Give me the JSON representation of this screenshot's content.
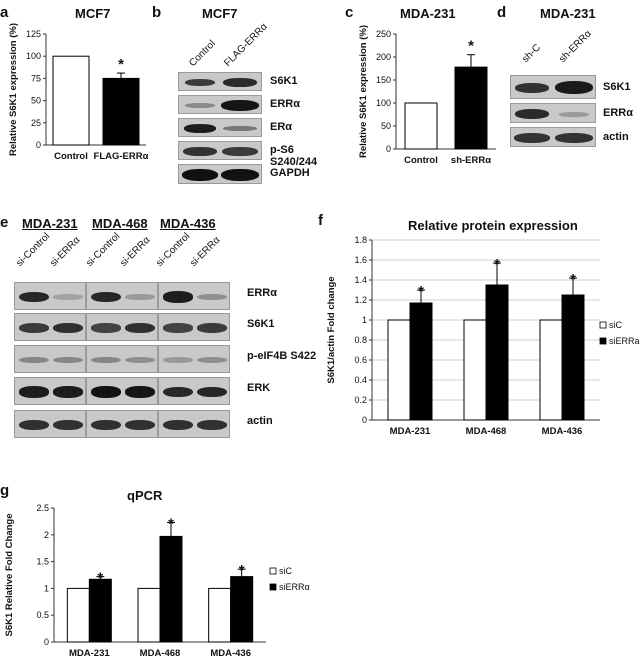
{
  "panels": {
    "a": {
      "letter": "a",
      "title": "MCF7",
      "ylabel": "Relative S6K1 expression (%)"
    },
    "b": {
      "letter": "b",
      "title": "MCF7",
      "lanes": [
        "Control",
        "FLAG-ERRα"
      ],
      "rows": [
        "S6K1",
        "ERRα",
        "ERα",
        "p-S6 S240/244",
        "GAPDH"
      ]
    },
    "c": {
      "letter": "c",
      "title": "MDA-231",
      "ylabel": "Relative S6K1 expression (%)"
    },
    "d": {
      "letter": "d",
      "title": "MDA-231",
      "lanes": [
        "sh-C",
        "sh-ERRα"
      ],
      "rows": [
        "S6K1",
        "ERRα",
        "actin"
      ]
    },
    "e": {
      "letter": "e",
      "cell_lines": [
        "MDA-231",
        "MDA-468",
        "MDA-436"
      ],
      "lanes": [
        "si-Control",
        "si-ERRα"
      ],
      "rows": [
        "ERRα",
        "S6K1",
        "p-eIF4B S422",
        "ERK",
        "actin"
      ]
    },
    "f": {
      "letter": "f",
      "title": "Relative protein expression",
      "ylabel": "S6K1/actin Fold change"
    },
    "g": {
      "letter": "g",
      "title": "qPCR",
      "ylabel": "S6K1 Relative Fold Change"
    }
  },
  "chart_data": [
    {
      "id": "a",
      "type": "bar",
      "categories": [
        "Control",
        "FLAG-ERRα"
      ],
      "values": [
        100,
        75
      ],
      "errors": [
        0,
        6
      ],
      "significance": [
        "",
        "*"
      ],
      "ylim": [
        0,
        125
      ],
      "yticks": [
        0,
        25,
        50,
        75,
        100,
        125
      ],
      "colors": [
        "#ffffff",
        "#000000"
      ],
      "ylabel": "Relative S6K1 expression (%)",
      "title": "MCF7"
    },
    {
      "id": "c",
      "type": "bar",
      "categories": [
        "Control",
        "sh-ERRα"
      ],
      "values": [
        100,
        178
      ],
      "errors": [
        0,
        27
      ],
      "significance": [
        "",
        "*"
      ],
      "ylim": [
        0,
        250
      ],
      "yticks": [
        0,
        50,
        100,
        150,
        200,
        250
      ],
      "colors": [
        "#ffffff",
        "#000000"
      ],
      "ylabel": "Relative S6K1 expression (%)",
      "title": "MDA-231"
    },
    {
      "id": "f",
      "type": "bar",
      "categories": [
        "MDA-231",
        "MDA-468",
        "MDA-436"
      ],
      "series": [
        {
          "name": "siC",
          "values": [
            1,
            1,
            1
          ],
          "errors": [
            0,
            0,
            0
          ],
          "color": "#ffffff"
        },
        {
          "name": "siERRa",
          "values": [
            1.17,
            1.35,
            1.25
          ],
          "errors": [
            0.13,
            0.22,
            0.17
          ],
          "color": "#000000"
        }
      ],
      "significance": [
        "*",
        "*",
        "*"
      ],
      "ylim": [
        0,
        1.8
      ],
      "yticks": [
        "0",
        "0.2",
        "0.4",
        "0.6",
        "0.8",
        "1",
        "1.2",
        "1.4",
        "1.6",
        "1.8"
      ],
      "ylabel": "S6K1/actin Fold change",
      "title": "Relative protein expression",
      "legend": "right"
    },
    {
      "id": "g",
      "type": "bar",
      "categories": [
        "MDA-231",
        "MDA-468",
        "MDA-436"
      ],
      "series": [
        {
          "name": "siC",
          "values": [
            1,
            1,
            1
          ],
          "errors": [
            0,
            0,
            0
          ],
          "color": "#ffffff"
        },
        {
          "name": "siERRα",
          "values": [
            1.17,
            1.97,
            1.22
          ],
          "errors": [
            0.05,
            0.26,
            0.14
          ],
          "color": "#000000"
        }
      ],
      "significance": [
        "*",
        "*",
        "*"
      ],
      "ylim": [
        0,
        2.5
      ],
      "yticks": [
        "0",
        "0.5",
        "1",
        "1.5",
        "2",
        "2.5"
      ],
      "ylabel": "S6K1 Relative Fold Change",
      "title": "qPCR",
      "legend": "right"
    }
  ]
}
